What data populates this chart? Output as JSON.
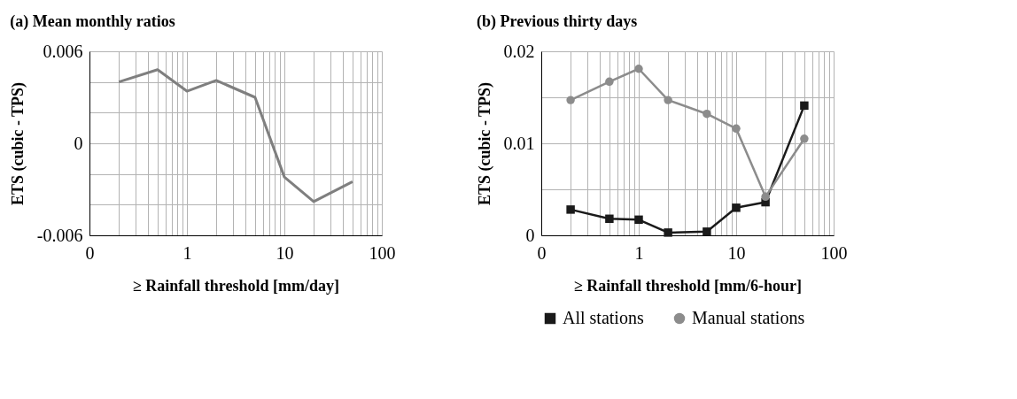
{
  "chart_data": [
    {
      "type": "line",
      "title": "(a) Mean monthly ratios",
      "xlabel": "≥ Rainfall threshold [mm/day]",
      "ylabel": "ETS (cubic - TPS)",
      "log": "x",
      "grid": true,
      "x": [
        0.2,
        0.5,
        1,
        2,
        5,
        10,
        20,
        50
      ],
      "series": [
        {
          "color": "#7f7f7f",
          "marker": "none",
          "values": [
            0.004,
            0.0048,
            0.0034,
            0.0041,
            0.003,
            -0.0022,
            -0.0038,
            -0.0025
          ]
        }
      ],
      "xlim": [
        0.1,
        100
      ],
      "xticks": [
        {
          "value": 0.1,
          "label": "0"
        },
        {
          "value": 0.2,
          "label": null
        },
        {
          "value": 0.3,
          "label": null
        },
        {
          "value": 0.4,
          "label": null
        },
        {
          "value": 0.5,
          "label": null
        },
        {
          "value": 0.6,
          "label": null
        },
        {
          "value": 0.7,
          "label": null
        },
        {
          "value": 0.8,
          "label": null
        },
        {
          "value": 0.9,
          "label": null
        },
        1,
        {
          "value": 2,
          "label": null
        },
        {
          "value": 3,
          "label": null
        },
        {
          "value": 4,
          "label": null
        },
        {
          "value": 5,
          "label": null
        },
        {
          "value": 6,
          "label": null
        },
        {
          "value": 7,
          "label": null
        },
        {
          "value": 8,
          "label": null
        },
        {
          "value": 9,
          "label": null
        },
        10,
        {
          "value": 20,
          "label": null
        },
        {
          "value": 30,
          "label": null
        },
        {
          "value": 40,
          "label": null
        },
        {
          "value": 50,
          "label": null
        },
        {
          "value": 60,
          "label": null
        },
        {
          "value": 70,
          "label": null
        },
        {
          "value": 80,
          "label": null
        },
        {
          "value": 90,
          "label": null
        },
        100
      ],
      "ylim": [
        -0.006,
        0.006
      ],
      "yticks": [
        -0.006,
        {
          "value": -0.004,
          "label": null
        },
        {
          "value": -0.002,
          "label": null
        },
        0,
        {
          "value": 0.002,
          "label": null
        },
        {
          "value": 0.004,
          "label": null
        },
        0.006
      ]
    },
    {
      "type": "line",
      "title": "(b) Previous thirty days",
      "xlabel": "≥ Rainfall threshold [mm/6-hour]",
      "ylabel": "ETS (cubic - TPS)",
      "log": "x",
      "grid": true,
      "legend": "bottom",
      "x": [
        0.2,
        0.5,
        1,
        2,
        5,
        10,
        20,
        50
      ],
      "series": [
        {
          "name": "All stations",
          "color": "#1a1a1a",
          "marker": "square",
          "values": [
            0.0028,
            0.0018,
            0.0017,
            0.0003,
            0.0004,
            0.003,
            0.0036,
            0.0141
          ]
        },
        {
          "name": "Manual stations",
          "color": "#8c8c8c",
          "marker": "circle",
          "values": [
            0.0147,
            0.0167,
            0.0181,
            0.0147,
            0.0132,
            0.0116,
            0.0042,
            0.0105
          ]
        }
      ],
      "xlim": [
        0.1,
        100
      ],
      "xticks": [
        {
          "value": 0.1,
          "label": "0"
        },
        {
          "value": 0.2,
          "label": null
        },
        {
          "value": 0.3,
          "label": null
        },
        {
          "value": 0.4,
          "label": null
        },
        {
          "value": 0.5,
          "label": null
        },
        {
          "value": 0.6,
          "label": null
        },
        {
          "value": 0.7,
          "label": null
        },
        {
          "value": 0.8,
          "label": null
        },
        {
          "value": 0.9,
          "label": null
        },
        1,
        {
          "value": 2,
          "label": null
        },
        {
          "value": 3,
          "label": null
        },
        {
          "value": 4,
          "label": null
        },
        {
          "value": 5,
          "label": null
        },
        {
          "value": 6,
          "label": null
        },
        {
          "value": 7,
          "label": null
        },
        {
          "value": 8,
          "label": null
        },
        {
          "value": 9,
          "label": null
        },
        10,
        {
          "value": 20,
          "label": null
        },
        {
          "value": 30,
          "label": null
        },
        {
          "value": 40,
          "label": null
        },
        {
          "value": 50,
          "label": null
        },
        {
          "value": 60,
          "label": null
        },
        {
          "value": 70,
          "label": null
        },
        {
          "value": 80,
          "label": null
        },
        {
          "value": 90,
          "label": null
        },
        100
      ],
      "ylim": [
        0,
        0.02
      ],
      "yticks": [
        0,
        {
          "value": 0.005,
          "label": null
        },
        0.01,
        {
          "value": 0.015,
          "label": null
        },
        0.02
      ]
    }
  ]
}
